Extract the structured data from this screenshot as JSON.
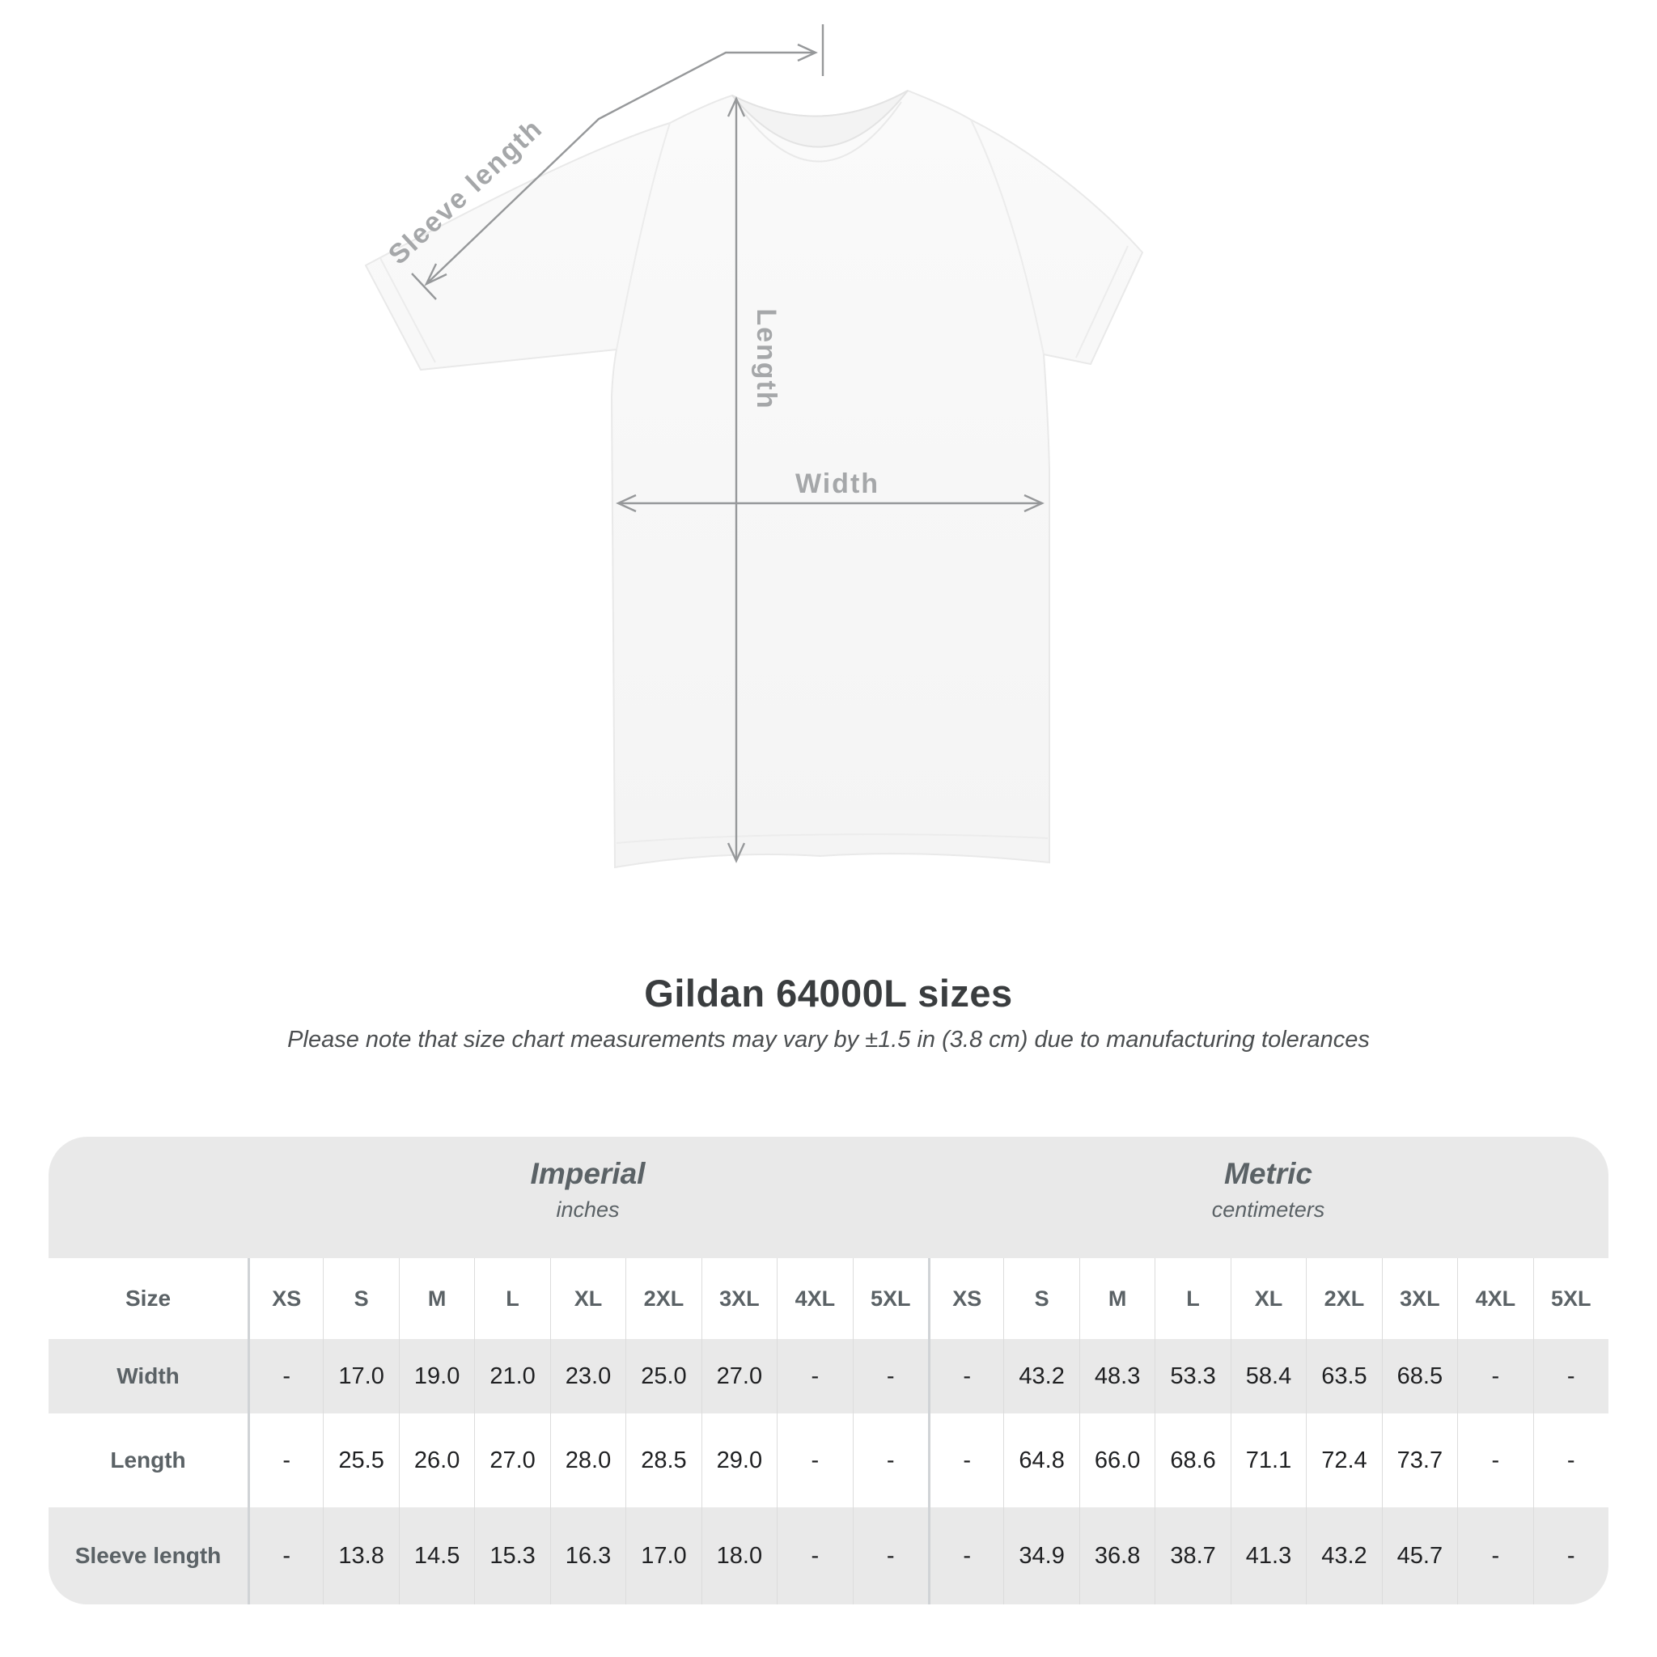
{
  "heading": {
    "title": "Gildan 64000L sizes",
    "subtitle": "Please note that size chart measurements may vary by ±1.5 in (3.8 cm) due to manufacturing tolerances"
  },
  "diagram": {
    "labels": {
      "sleeve_length": "Sleeve length",
      "length": "Length",
      "width": "Width"
    },
    "line_color": "#96989a",
    "label_color": "#a5a7a9",
    "shirt_color": "#f8f8f8"
  },
  "table": {
    "band_color": "#e9e9e9",
    "size_column_header": "Size",
    "sections": [
      {
        "label": "Imperial",
        "unit": "inches"
      },
      {
        "label": "Metric",
        "unit": "centimeters"
      }
    ],
    "size_headers": [
      "XS",
      "S",
      "M",
      "L",
      "XL",
      "2XL",
      "3XL",
      "4XL",
      "5XL"
    ],
    "rows": [
      {
        "label": "Width",
        "imperial": [
          "-",
          "17.0",
          "19.0",
          "21.0",
          "23.0",
          "25.0",
          "27.0",
          "-",
          "-"
        ],
        "metric": [
          "-",
          "43.2",
          "48.3",
          "53.3",
          "58.4",
          "63.5",
          "68.5",
          "-",
          "-"
        ]
      },
      {
        "label": "Length",
        "imperial": [
          "-",
          "25.5",
          "26.0",
          "27.0",
          "28.0",
          "28.5",
          "29.0",
          "-",
          "-"
        ],
        "metric": [
          "-",
          "64.8",
          "66.0",
          "68.6",
          "71.1",
          "72.4",
          "73.7",
          "-",
          "-"
        ]
      },
      {
        "label": "Sleeve length",
        "imperial": [
          "-",
          "13.8",
          "14.5",
          "15.3",
          "16.3",
          "17.0",
          "18.0",
          "-",
          "-"
        ],
        "metric": [
          "-",
          "34.9",
          "36.8",
          "38.7",
          "41.3",
          "43.2",
          "45.7",
          "-",
          "-"
        ]
      }
    ]
  },
  "chart_data": {
    "type": "table",
    "title": "Gildan 64000L sizes",
    "note": "Measurements may vary by ±1.5 in (3.8 cm) due to manufacturing tolerances",
    "columns": [
      "XS",
      "S",
      "M",
      "L",
      "XL",
      "2XL",
      "3XL",
      "4XL",
      "5XL"
    ],
    "series": [
      {
        "name": "Width (inches)",
        "values": [
          null,
          17.0,
          19.0,
          21.0,
          23.0,
          25.0,
          27.0,
          null,
          null
        ]
      },
      {
        "name": "Length (inches)",
        "values": [
          null,
          25.5,
          26.0,
          27.0,
          28.0,
          28.5,
          29.0,
          null,
          null
        ]
      },
      {
        "name": "Sleeve length (inches)",
        "values": [
          null,
          13.8,
          14.5,
          15.3,
          16.3,
          17.0,
          18.0,
          null,
          null
        ]
      },
      {
        "name": "Width (cm)",
        "values": [
          null,
          43.2,
          48.3,
          53.3,
          58.4,
          63.5,
          68.5,
          null,
          null
        ]
      },
      {
        "name": "Length (cm)",
        "values": [
          null,
          64.8,
          66.0,
          68.6,
          71.1,
          72.4,
          73.7,
          null,
          null
        ]
      },
      {
        "name": "Sleeve length (cm)",
        "values": [
          null,
          34.9,
          36.8,
          38.7,
          41.3,
          43.2,
          45.7,
          null,
          null
        ]
      }
    ]
  }
}
